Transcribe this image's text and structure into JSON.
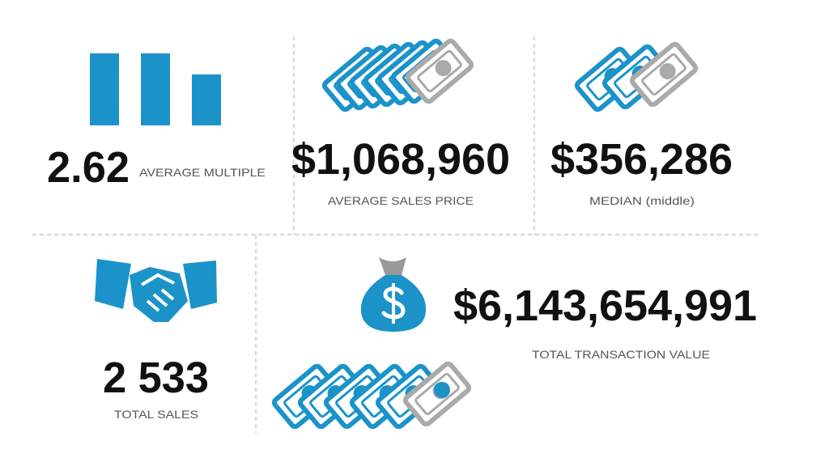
{
  "stats": [
    {
      "value": "2.62",
      "label": "AVERAGE MULTIPLE"
    },
    {
      "value": "$1,068,960",
      "label": "AVERAGE SALES PRICE"
    },
    {
      "value": "$356,286",
      "label": "MEDIAN (middle)"
    },
    {
      "value": "2 533",
      "label": "TOTAL SALES"
    },
    {
      "value": "$6,143,654,991",
      "label": "TOTAL TRANSACTION VALUE"
    }
  ]
}
